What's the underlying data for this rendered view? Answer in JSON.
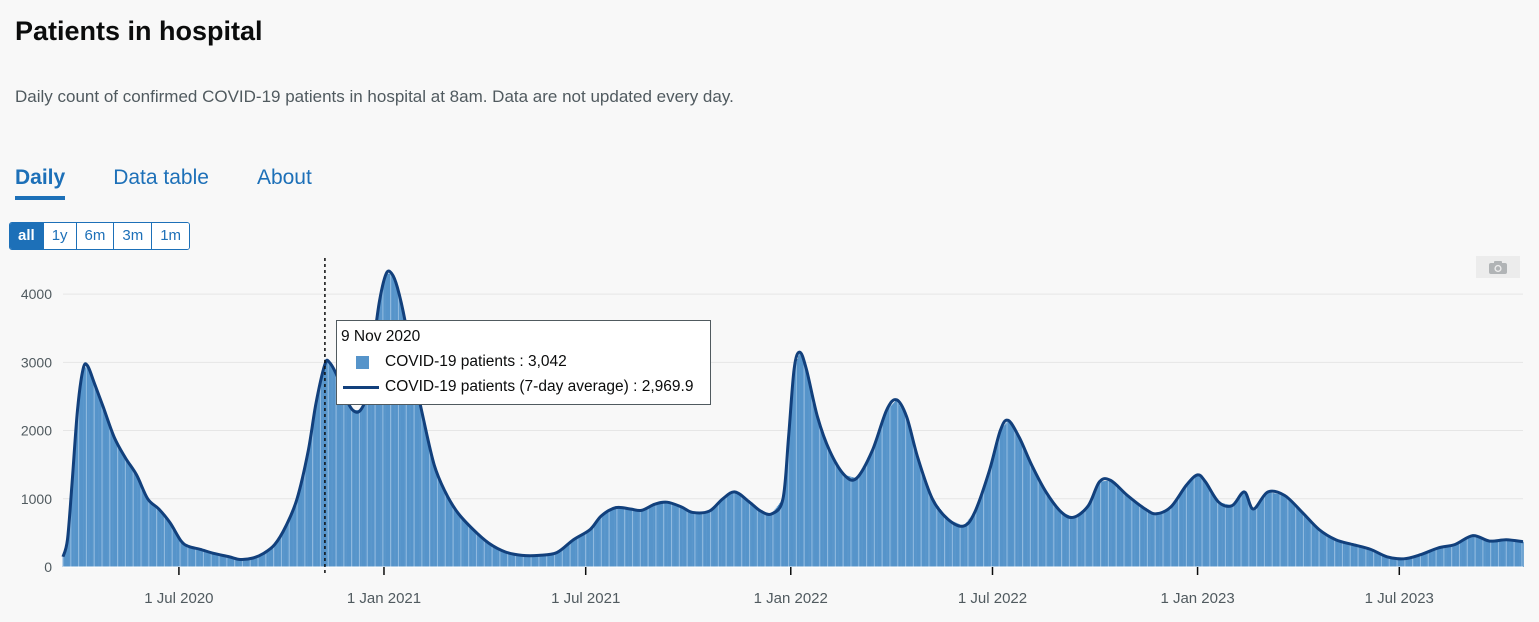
{
  "page": {
    "title": "Patients in hospital",
    "description": "Daily count of confirmed COVID-19 patients in hospital at 8am. Data are not updated every day."
  },
  "tabs": [
    {
      "label": "Daily",
      "active": true
    },
    {
      "label": "Data table",
      "active": false
    },
    {
      "label": "About",
      "active": false
    }
  ],
  "range_buttons": [
    {
      "label": "all",
      "active": true
    },
    {
      "label": "1y",
      "active": false
    },
    {
      "label": "6m",
      "active": false
    },
    {
      "label": "3m",
      "active": false
    },
    {
      "label": "1m",
      "active": false
    }
  ],
  "colors": {
    "bar": "#5694ca",
    "line": "#12407c",
    "link": "#1d70b8"
  },
  "tooltip": {
    "date": "9 Nov 2020",
    "bar_text": "COVID-19 patients : 3,042",
    "line_text": "COVID-19 patients (7-day average) : 2,969.9"
  },
  "chart_data": {
    "type": "bar",
    "x_start": "2020-03-19",
    "x_end": "2023-10-20",
    "crosshair_date": "2020-11-09",
    "yticks": [
      0,
      1000,
      2000,
      3000,
      4000
    ],
    "ylim": [
      0,
      4500
    ],
    "xticks": [
      {
        "date": "2020-07-01",
        "label": "1 Jul 2020"
      },
      {
        "date": "2021-01-01",
        "label": "1 Jan 2021"
      },
      {
        "date": "2021-07-01",
        "label": "1 Jul 2021"
      },
      {
        "date": "2022-01-01",
        "label": "1 Jan 2022"
      },
      {
        "date": "2022-07-01",
        "label": "1 Jul 2022"
      },
      {
        "date": "2023-01-01",
        "label": "1 Jan 2023"
      },
      {
        "date": "2023-07-01",
        "label": "1 Jul 2023"
      }
    ],
    "series": [
      {
        "name": "COVID-19 patients",
        "kind": "bar",
        "points": [
          [
            "2020-03-19",
            150
          ],
          [
            "2020-03-23",
            400
          ],
          [
            "2020-03-27",
            1200
          ],
          [
            "2020-04-01",
            2300
          ],
          [
            "2020-04-06",
            2900
          ],
          [
            "2020-04-10",
            2950
          ],
          [
            "2020-04-16",
            2700
          ],
          [
            "2020-04-24",
            2350
          ],
          [
            "2020-05-04",
            1900
          ],
          [
            "2020-05-14",
            1600
          ],
          [
            "2020-05-24",
            1350
          ],
          [
            "2020-06-03",
            1000
          ],
          [
            "2020-06-13",
            850
          ],
          [
            "2020-06-23",
            650
          ],
          [
            "2020-07-03",
            380
          ],
          [
            "2020-07-10",
            300
          ],
          [
            "2020-07-20",
            260
          ],
          [
            "2020-08-01",
            200
          ],
          [
            "2020-08-15",
            150
          ],
          [
            "2020-08-25",
            110
          ],
          [
            "2020-09-05",
            130
          ],
          [
            "2020-09-15",
            200
          ],
          [
            "2020-09-25",
            330
          ],
          [
            "2020-10-05",
            600
          ],
          [
            "2020-10-15",
            1000
          ],
          [
            "2020-10-25",
            1700
          ],
          [
            "2020-11-01",
            2400
          ],
          [
            "2020-11-09",
            3042
          ],
          [
            "2020-11-13",
            3000
          ],
          [
            "2020-11-20",
            2800
          ],
          [
            "2020-11-27",
            2500
          ],
          [
            "2020-12-04",
            2300
          ],
          [
            "2020-12-11",
            2300
          ],
          [
            "2020-12-18",
            2600
          ],
          [
            "2020-12-23",
            3300
          ],
          [
            "2020-12-28",
            3900
          ],
          [
            "2021-01-03",
            4300
          ],
          [
            "2021-01-08",
            4300
          ],
          [
            "2021-01-13",
            4100
          ],
          [
            "2021-01-20",
            3600
          ],
          [
            "2021-01-27",
            2900
          ],
          [
            "2021-02-05",
            2200
          ],
          [
            "2021-02-15",
            1500
          ],
          [
            "2021-02-25",
            1100
          ],
          [
            "2021-03-08",
            800
          ],
          [
            "2021-03-22",
            550
          ],
          [
            "2021-04-05",
            350
          ],
          [
            "2021-04-20",
            220
          ],
          [
            "2021-05-05",
            170
          ],
          [
            "2021-05-20",
            170
          ],
          [
            "2021-06-05",
            210
          ],
          [
            "2021-06-20",
            400
          ],
          [
            "2021-07-05",
            550
          ],
          [
            "2021-07-15",
            750
          ],
          [
            "2021-07-28",
            870
          ],
          [
            "2021-08-10",
            850
          ],
          [
            "2021-08-20",
            830
          ],
          [
            "2021-09-01",
            920
          ],
          [
            "2021-09-12",
            950
          ],
          [
            "2021-09-25",
            880
          ],
          [
            "2021-10-05",
            800
          ],
          [
            "2021-10-20",
            820
          ],
          [
            "2021-11-01",
            1000
          ],
          [
            "2021-11-12",
            1100
          ],
          [
            "2021-11-25",
            950
          ],
          [
            "2021-12-05",
            820
          ],
          [
            "2021-12-15",
            780
          ],
          [
            "2021-12-25",
            1000
          ],
          [
            "2021-12-30",
            1900
          ],
          [
            "2022-01-04",
            2900
          ],
          [
            "2022-01-09",
            3150
          ],
          [
            "2022-01-15",
            2900
          ],
          [
            "2022-01-25",
            2200
          ],
          [
            "2022-02-05",
            1700
          ],
          [
            "2022-02-18",
            1350
          ],
          [
            "2022-03-01",
            1300
          ],
          [
            "2022-03-15",
            1700
          ],
          [
            "2022-03-28",
            2300
          ],
          [
            "2022-04-06",
            2450
          ],
          [
            "2022-04-15",
            2200
          ],
          [
            "2022-04-25",
            1600
          ],
          [
            "2022-05-08",
            1000
          ],
          [
            "2022-05-22",
            700
          ],
          [
            "2022-06-05",
            600
          ],
          [
            "2022-06-15",
            800
          ],
          [
            "2022-06-28",
            1400
          ],
          [
            "2022-07-08",
            2000
          ],
          [
            "2022-07-15",
            2150
          ],
          [
            "2022-07-25",
            1900
          ],
          [
            "2022-08-05",
            1500
          ],
          [
            "2022-08-18",
            1100
          ],
          [
            "2022-09-01",
            800
          ],
          [
            "2022-09-12",
            730
          ],
          [
            "2022-09-25",
            900
          ],
          [
            "2022-10-05",
            1250
          ],
          [
            "2022-10-15",
            1270
          ],
          [
            "2022-10-30",
            1050
          ],
          [
            "2022-11-15",
            850
          ],
          [
            "2022-11-25",
            780
          ],
          [
            "2022-12-08",
            880
          ],
          [
            "2022-12-22",
            1200
          ],
          [
            "2023-01-01",
            1350
          ],
          [
            "2023-01-08",
            1250
          ],
          [
            "2023-01-20",
            950
          ],
          [
            "2023-02-01",
            900
          ],
          [
            "2023-02-12",
            1100
          ],
          [
            "2023-02-20",
            850
          ],
          [
            "2023-03-05",
            1100
          ],
          [
            "2023-03-20",
            1050
          ],
          [
            "2023-04-05",
            800
          ],
          [
            "2023-04-20",
            550
          ],
          [
            "2023-05-05",
            400
          ],
          [
            "2023-05-20",
            330
          ],
          [
            "2023-06-05",
            260
          ],
          [
            "2023-06-20",
            150
          ],
          [
            "2023-07-05",
            120
          ],
          [
            "2023-07-20",
            180
          ],
          [
            "2023-08-05",
            280
          ],
          [
            "2023-08-20",
            330
          ],
          [
            "2023-09-05",
            460
          ],
          [
            "2023-09-20",
            380
          ],
          [
            "2023-10-05",
            400
          ],
          [
            "2023-10-20",
            370
          ]
        ]
      },
      {
        "name": "COVID-19 patients (7-day average)",
        "kind": "line",
        "points": [
          [
            "2020-03-19",
            150
          ],
          [
            "2020-03-23",
            400
          ],
          [
            "2020-03-27",
            1200
          ],
          [
            "2020-04-01",
            2300
          ],
          [
            "2020-04-06",
            2900
          ],
          [
            "2020-04-10",
            2950
          ],
          [
            "2020-04-16",
            2700
          ],
          [
            "2020-04-24",
            2350
          ],
          [
            "2020-05-04",
            1900
          ],
          [
            "2020-05-14",
            1600
          ],
          [
            "2020-05-24",
            1350
          ],
          [
            "2020-06-03",
            1000
          ],
          [
            "2020-06-13",
            850
          ],
          [
            "2020-06-23",
            650
          ],
          [
            "2020-07-03",
            380
          ],
          [
            "2020-07-10",
            300
          ],
          [
            "2020-07-20",
            260
          ],
          [
            "2020-08-01",
            200
          ],
          [
            "2020-08-15",
            150
          ],
          [
            "2020-08-25",
            110
          ],
          [
            "2020-09-05",
            130
          ],
          [
            "2020-09-15",
            200
          ],
          [
            "2020-09-25",
            330
          ],
          [
            "2020-10-05",
            600
          ],
          [
            "2020-10-15",
            1000
          ],
          [
            "2020-10-25",
            1700
          ],
          [
            "2020-11-01",
            2400
          ],
          [
            "2020-11-09",
            2969.9
          ],
          [
            "2020-11-13",
            3000
          ],
          [
            "2020-11-20",
            2800
          ],
          [
            "2020-11-27",
            2500
          ],
          [
            "2020-12-04",
            2300
          ],
          [
            "2020-12-11",
            2300
          ],
          [
            "2020-12-18",
            2600
          ],
          [
            "2020-12-23",
            3300
          ],
          [
            "2020-12-28",
            3900
          ],
          [
            "2021-01-03",
            4300
          ],
          [
            "2021-01-08",
            4300
          ],
          [
            "2021-01-13",
            4100
          ],
          [
            "2021-01-20",
            3600
          ],
          [
            "2021-01-27",
            2900
          ],
          [
            "2021-02-05",
            2200
          ],
          [
            "2021-02-15",
            1500
          ],
          [
            "2021-02-25",
            1100
          ],
          [
            "2021-03-08",
            800
          ],
          [
            "2021-03-22",
            550
          ],
          [
            "2021-04-05",
            350
          ],
          [
            "2021-04-20",
            220
          ],
          [
            "2021-05-05",
            170
          ],
          [
            "2021-05-20",
            170
          ],
          [
            "2021-06-05",
            210
          ],
          [
            "2021-06-20",
            400
          ],
          [
            "2021-07-05",
            550
          ],
          [
            "2021-07-15",
            750
          ],
          [
            "2021-07-28",
            870
          ],
          [
            "2021-08-10",
            850
          ],
          [
            "2021-08-20",
            830
          ],
          [
            "2021-09-01",
            920
          ],
          [
            "2021-09-12",
            950
          ],
          [
            "2021-09-25",
            880
          ],
          [
            "2021-10-05",
            800
          ],
          [
            "2021-10-20",
            820
          ],
          [
            "2021-11-01",
            1000
          ],
          [
            "2021-11-12",
            1100
          ],
          [
            "2021-11-25",
            950
          ],
          [
            "2021-12-05",
            820
          ],
          [
            "2021-12-15",
            780
          ],
          [
            "2021-12-25",
            1000
          ],
          [
            "2021-12-30",
            1900
          ],
          [
            "2022-01-04",
            2900
          ],
          [
            "2022-01-09",
            3150
          ],
          [
            "2022-01-15",
            2900
          ],
          [
            "2022-01-25",
            2200
          ],
          [
            "2022-02-05",
            1700
          ],
          [
            "2022-02-18",
            1350
          ],
          [
            "2022-03-01",
            1300
          ],
          [
            "2022-03-15",
            1700
          ],
          [
            "2022-03-28",
            2300
          ],
          [
            "2022-04-06",
            2450
          ],
          [
            "2022-04-15",
            2200
          ],
          [
            "2022-04-25",
            1600
          ],
          [
            "2022-05-08",
            1000
          ],
          [
            "2022-05-22",
            700
          ],
          [
            "2022-06-05",
            600
          ],
          [
            "2022-06-15",
            800
          ],
          [
            "2022-06-28",
            1400
          ],
          [
            "2022-07-08",
            2000
          ],
          [
            "2022-07-15",
            2150
          ],
          [
            "2022-07-25",
            1900
          ],
          [
            "2022-08-05",
            1500
          ],
          [
            "2022-08-18",
            1100
          ],
          [
            "2022-09-01",
            800
          ],
          [
            "2022-09-12",
            730
          ],
          [
            "2022-09-25",
            900
          ],
          [
            "2022-10-05",
            1250
          ],
          [
            "2022-10-15",
            1270
          ],
          [
            "2022-10-30",
            1050
          ],
          [
            "2022-11-15",
            850
          ],
          [
            "2022-11-25",
            780
          ],
          [
            "2022-12-08",
            880
          ],
          [
            "2022-12-22",
            1200
          ],
          [
            "2023-01-01",
            1350
          ],
          [
            "2023-01-08",
            1250
          ],
          [
            "2023-01-20",
            950
          ],
          [
            "2023-02-01",
            900
          ],
          [
            "2023-02-12",
            1100
          ],
          [
            "2023-02-20",
            850
          ],
          [
            "2023-03-05",
            1100
          ],
          [
            "2023-03-20",
            1050
          ],
          [
            "2023-04-05",
            800
          ],
          [
            "2023-04-20",
            550
          ],
          [
            "2023-05-05",
            400
          ],
          [
            "2023-05-20",
            330
          ],
          [
            "2023-06-05",
            260
          ],
          [
            "2023-06-20",
            150
          ],
          [
            "2023-07-05",
            120
          ],
          [
            "2023-07-20",
            180
          ],
          [
            "2023-08-05",
            280
          ],
          [
            "2023-08-20",
            330
          ],
          [
            "2023-09-05",
            460
          ],
          [
            "2023-09-20",
            380
          ],
          [
            "2023-10-05",
            400
          ],
          [
            "2023-10-20",
            370
          ]
        ]
      }
    ]
  }
}
